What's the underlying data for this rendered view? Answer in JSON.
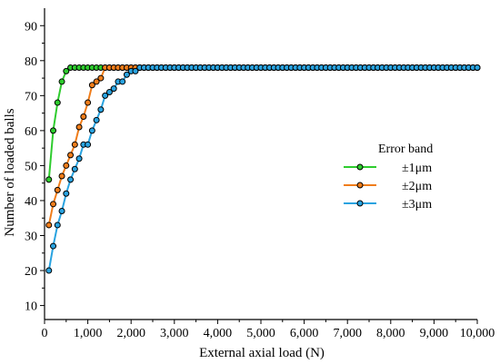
{
  "chart_data": {
    "type": "line",
    "xlabel": "External axial load  (N)",
    "ylabel": "Number of loaded balls",
    "xlim": [
      0,
      10000
    ],
    "ylim": [
      6,
      95
    ],
    "x_ticks": [
      0,
      1000,
      2000,
      3000,
      4000,
      5000,
      6000,
      7000,
      8000,
      9000,
      10000
    ],
    "x_tick_labels": [
      "0",
      "1,000",
      "2,000",
      "3,000",
      "4,000",
      "5,000",
      "6,000",
      "7,000",
      "8,000",
      "9,000",
      "10,000"
    ],
    "y_ticks": [
      10,
      20,
      30,
      40,
      50,
      60,
      70,
      80,
      90
    ],
    "y_tick_labels": [
      "10",
      "20",
      "30",
      "40",
      "50",
      "60",
      "70",
      "80",
      "90"
    ],
    "grid": false,
    "legend_title": "Error band",
    "legend_position": "right",
    "x_sample_step": 100,
    "series": [
      {
        "name": "±1μm",
        "color": "#2ecc2e",
        "x": [
          100,
          200,
          300,
          400,
          500,
          600,
          700,
          800,
          900,
          1000,
          1100,
          1200,
          1300,
          1400,
          1500,
          1600,
          1700,
          1800,
          1900,
          2000,
          2100
        ],
        "y": [
          46,
          60,
          68,
          74,
          77,
          78,
          78,
          78,
          78,
          78,
          78,
          78,
          78,
          78,
          78,
          78,
          78,
          78,
          78,
          78,
          78
        ],
        "tail_value": 78
      },
      {
        "name": "±2μm",
        "color": "#f07d1a",
        "x": [
          100,
          200,
          300,
          400,
          500,
          600,
          700,
          800,
          900,
          1000,
          1100,
          1200,
          1300,
          1400,
          1500,
          1600,
          1700,
          1800,
          1900,
          2000,
          2100
        ],
        "y": [
          33,
          39,
          43,
          47,
          50,
          53,
          56,
          61,
          64,
          68,
          73,
          74,
          75,
          78,
          78,
          78,
          78,
          78,
          78,
          78,
          78
        ],
        "tail_value": 78
      },
      {
        "name": "±3μm",
        "color": "#29a3e0",
        "x": [
          100,
          200,
          300,
          400,
          500,
          600,
          700,
          800,
          900,
          1000,
          1100,
          1200,
          1300,
          1400,
          1500,
          1600,
          1700,
          1800,
          1900,
          2000,
          2100
        ],
        "y": [
          20,
          27,
          33,
          37,
          42,
          46,
          49,
          52,
          56,
          56,
          60,
          63,
          66,
          70,
          71,
          72,
          74,
          74,
          76,
          77,
          77
        ],
        "tail_value": 78
      }
    ]
  }
}
